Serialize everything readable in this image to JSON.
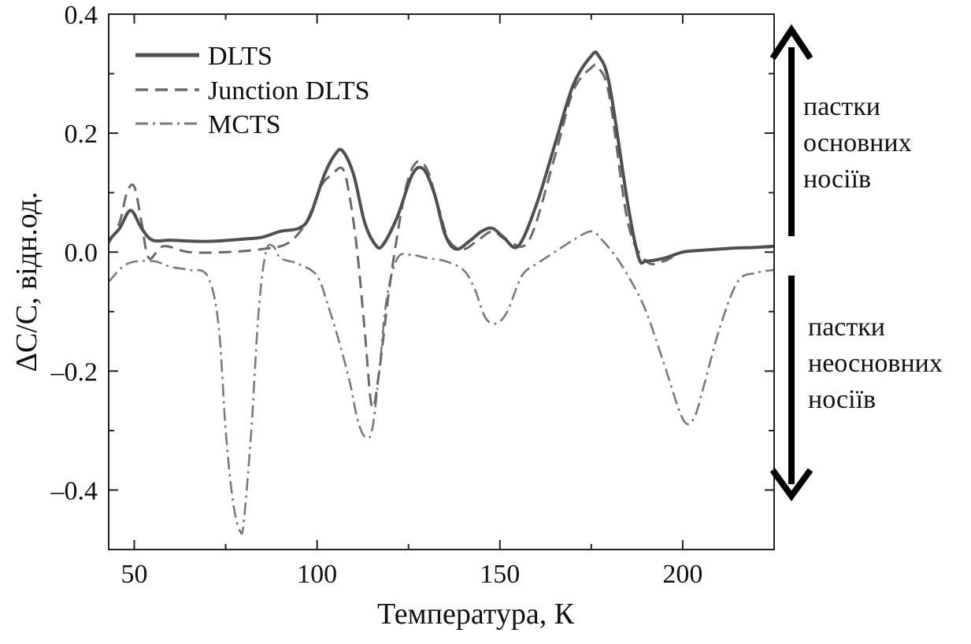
{
  "chart_data": {
    "type": "line",
    "xlabel": "Температура, К",
    "ylabel": "ΔC/C, відн.од.",
    "xlim": [
      43,
      225
    ],
    "ylim": [
      -0.5,
      0.4
    ],
    "xticks": [
      50,
      100,
      150,
      200
    ],
    "yticks": [
      0.4,
      0.2,
      0.0,
      -0.2,
      -0.4
    ],
    "ytick_labels": [
      "0.4",
      "0.2",
      "0.0",
      "–0.2",
      "–0.4"
    ],
    "grid": false,
    "legend_position": "top-left",
    "colors": {
      "dlts": "#505050",
      "junction": "#6a6a6a",
      "mcts": "#7a7a7a",
      "axis": "#222222"
    },
    "series": [
      {
        "name": "DLTS",
        "style": "solid",
        "x": [
          43,
          46,
          49,
          52,
          55,
          60,
          70,
          80,
          85,
          90,
          95,
          98,
          102,
          105,
          107,
          110,
          113,
          116,
          118,
          122,
          126,
          129,
          132,
          135,
          138,
          142,
          145,
          148,
          151,
          155,
          160,
          165,
          170,
          175,
          177,
          180,
          185,
          188,
          190,
          195,
          200,
          205,
          210,
          215,
          220,
          225
        ],
        "y": [
          0.02,
          0.04,
          0.07,
          0.04,
          0.02,
          0.02,
          0.018,
          0.022,
          0.025,
          0.035,
          0.04,
          0.06,
          0.13,
          0.165,
          0.17,
          0.13,
          0.05,
          0.012,
          0.012,
          0.06,
          0.13,
          0.14,
          0.1,
          0.03,
          0.005,
          0.02,
          0.035,
          0.04,
          0.025,
          0.01,
          0.08,
          0.18,
          0.28,
          0.33,
          0.33,
          0.28,
          0.08,
          -0.01,
          -0.015,
          -0.01,
          0.0,
          0.003,
          0.005,
          0.007,
          0.008,
          0.01
        ]
      },
      {
        "name": "Junction DLTS",
        "style": "dashed",
        "x": [
          43,
          46,
          48,
          50,
          52,
          54,
          58,
          65,
          75,
          85,
          92,
          97,
          101,
          104,
          107,
          109,
          111,
          113,
          115,
          117,
          120,
          124,
          127,
          130,
          133,
          136,
          140,
          144,
          148,
          152,
          158,
          165,
          170,
          175,
          177,
          180,
          185,
          190,
          195,
          200,
          210,
          220,
          225
        ],
        "y": [
          0.015,
          0.05,
          0.1,
          0.11,
          0.05,
          -0.01,
          0.01,
          0.0,
          0.0,
          0.005,
          0.015,
          0.05,
          0.11,
          0.13,
          0.14,
          0.09,
          0.0,
          -0.13,
          -0.26,
          -0.2,
          -0.05,
          0.1,
          0.15,
          0.14,
          0.08,
          0.02,
          0.005,
          0.02,
          0.035,
          0.02,
          0.02,
          0.16,
          0.27,
          0.31,
          0.31,
          0.26,
          0.05,
          -0.015,
          -0.015,
          0.0,
          0.005,
          0.008,
          0.008
        ]
      },
      {
        "name": "MCTS",
        "style": "dashdot",
        "x": [
          43,
          48,
          55,
          60,
          65,
          70,
          73,
          75,
          77,
          79,
          80,
          82,
          84,
          86,
          88,
          90,
          95,
          100,
          103,
          106,
          109,
          111,
          113,
          115,
          117,
          119,
          122,
          126,
          130,
          135,
          140,
          143,
          146,
          149,
          152,
          156,
          160,
          165,
          170,
          175,
          178,
          182,
          186,
          190,
          195,
          200,
          203,
          206,
          210,
          215,
          220,
          225
        ],
        "y": [
          -0.05,
          -0.02,
          -0.015,
          -0.025,
          -0.03,
          -0.04,
          -0.12,
          -0.3,
          -0.42,
          -0.47,
          -0.45,
          -0.3,
          -0.1,
          0.0,
          0.01,
          -0.01,
          -0.02,
          -0.04,
          -0.09,
          -0.15,
          -0.22,
          -0.28,
          -0.31,
          -0.3,
          -0.2,
          -0.08,
          -0.01,
          -0.005,
          -0.01,
          -0.015,
          -0.03,
          -0.06,
          -0.11,
          -0.12,
          -0.1,
          -0.04,
          -0.02,
          0.0,
          0.02,
          0.035,
          0.02,
          -0.01,
          -0.05,
          -0.1,
          -0.19,
          -0.28,
          -0.28,
          -0.22,
          -0.13,
          -0.05,
          -0.035,
          -0.03
        ]
      }
    ],
    "annotations": {
      "majority": [
        "пастки",
        "основних",
        "носіїв"
      ],
      "minority": [
        "пастки",
        "неосновних",
        "носіїв"
      ]
    }
  }
}
